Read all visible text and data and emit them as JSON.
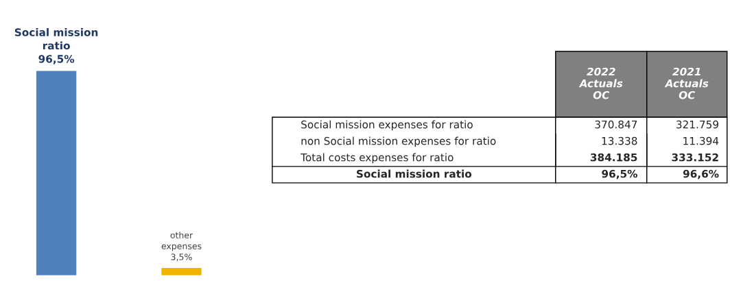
{
  "chart_data": [
    {
      "type": "bar",
      "categories": [
        null,
        null
      ],
      "values": [
        96.5,
        3.5
      ],
      "colors": [
        "#4f81bd",
        "#f0b400"
      ],
      "value_labels": [
        "Social mission\nratio\n96,5%",
        "other\nexpenses\n3,5%"
      ]
    },
    {
      "type": "other",
      "annotations": [
        "2022\nActuals\nOC",
        "2021\nActuals\nOC",
        "Social mission expenses for ratio",
        "370.847",
        "321.759",
        "non Social mission expenses for ratio",
        "13.338",
        "11.394",
        "Total costs expenses for ratio",
        "384.185",
        "333.152",
        "Social mission ratio",
        "96,5%",
        "96,6%"
      ]
    }
  ]
}
